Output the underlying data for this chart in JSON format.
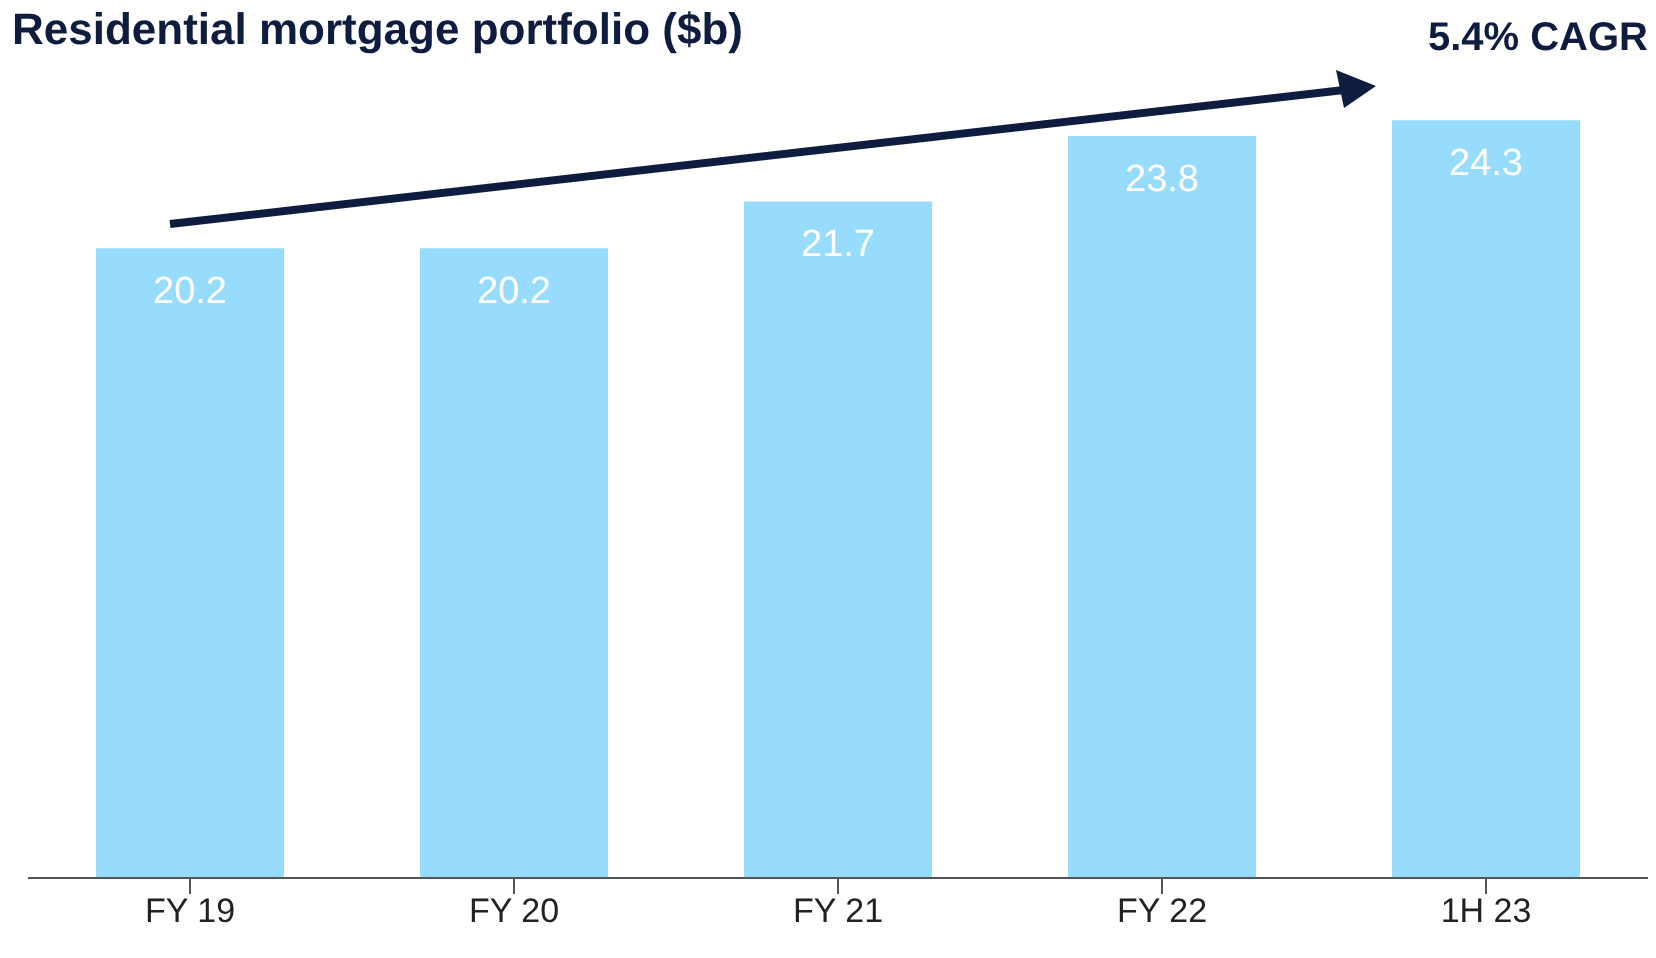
{
  "chart_data": {
    "type": "bar",
    "title": "Residential mortgage portfolio ($b)",
    "categories": [
      "FY 19",
      "FY 20",
      "FY 21",
      "FY 22",
      "1H 23"
    ],
    "values": [
      20.2,
      20.2,
      21.7,
      23.8,
      24.3
    ],
    "color": "#97dcfc",
    "data_labels": true,
    "annotations": [
      "5.4% CAGR"
    ]
  }
}
